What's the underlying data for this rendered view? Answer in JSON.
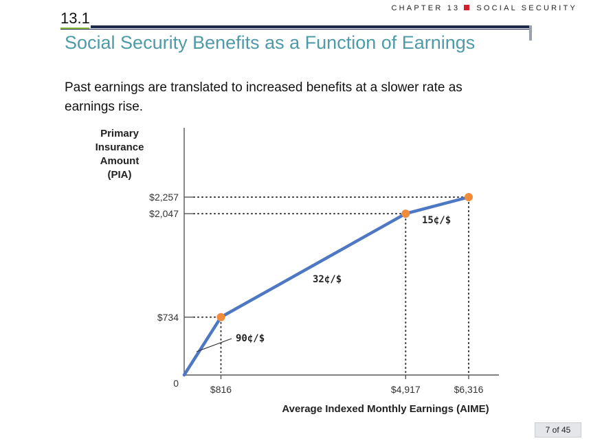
{
  "header": {
    "chapter": "CHAPTER 13",
    "topic": "SOCIAL SECURITY"
  },
  "section": {
    "number": "13.1"
  },
  "title": "Social Security Benefits as a Function of Earnings",
  "subtitle": "Past earnings are translated to increased benefits at a slower rate as earnings rise.",
  "page": {
    "label": "7 of 45"
  },
  "chart_data": {
    "type": "line",
    "ylabel": [
      "Primary",
      "Insurance",
      "Amount",
      "(PIA)"
    ],
    "xlabel": "Average Indexed Monthly Earnings (AIME)",
    "origin_label": "0",
    "x_ticks": [
      "$816",
      "$4,917",
      "$6,316"
    ],
    "y_ticks": [
      "$734",
      "$2,047",
      "$2,257"
    ],
    "series": [
      {
        "x": [
          0,
          816,
          4917,
          6316
        ],
        "y": [
          0,
          734,
          2047,
          2257
        ]
      }
    ],
    "bend_points": [
      [
        816,
        734
      ],
      [
        4917,
        2047
      ],
      [
        6316,
        2257
      ]
    ],
    "segment_labels": [
      "90¢/$",
      "32¢/$",
      "15¢/$"
    ],
    "colors": {
      "line": "#4f78c4",
      "points": "#f08c3c",
      "axis": "#555555"
    }
  }
}
